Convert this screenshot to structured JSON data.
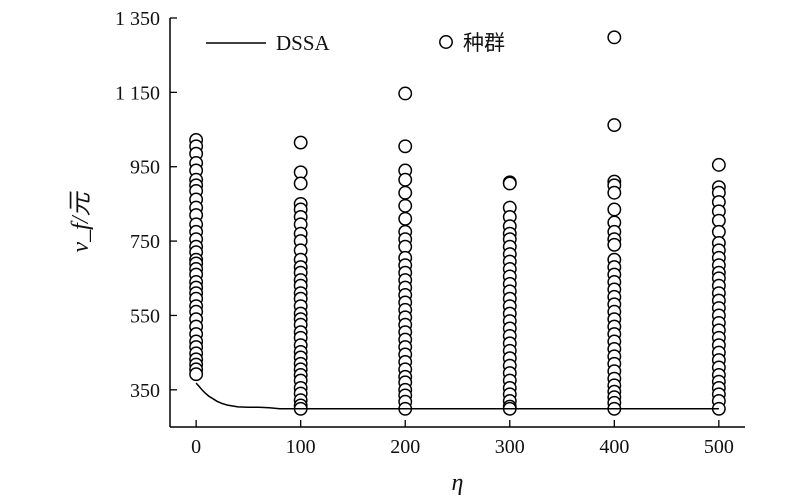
{
  "chart_data": {
    "type": "scatter",
    "title": "",
    "xlabel": "η",
    "ylabel": "v_f/元",
    "xlim": [
      -25,
      525
    ],
    "ylim": [
      250,
      1350
    ],
    "x_ticks": [
      0,
      100,
      200,
      300,
      400,
      500
    ],
    "x_tick_labels": [
      "0",
      "100",
      "200",
      "300",
      "400",
      "500"
    ],
    "y_ticks": [
      350,
      550,
      750,
      950,
      1150,
      1350
    ],
    "y_tick_labels": [
      "350",
      "550",
      "750",
      "950",
      "1 150",
      "1 350"
    ],
    "grid": false,
    "legend": {
      "position": "top",
      "entries": [
        {
          "label": "DSSA",
          "marker": "line"
        },
        {
          "label": "种群",
          "marker": "circle"
        }
      ]
    },
    "series": [
      {
        "name": "DSSA",
        "kind": "line",
        "color": "#000000",
        "x": [
          0,
          2,
          5,
          8,
          12,
          16,
          20,
          25,
          30,
          40,
          50,
          60,
          70,
          80,
          100,
          150,
          200,
          300,
          400,
          500
        ],
        "y": [
          368,
          362,
          352,
          343,
          333,
          326,
          319,
          313,
          309,
          304,
          303,
          303,
          302,
          299,
          299,
          299,
          299,
          299,
          299,
          299
        ]
      },
      {
        "name": "种群",
        "kind": "scatter",
        "color": "#000000",
        "points": [
          [
            0,
            1022
          ],
          [
            0,
            1005
          ],
          [
            0,
            985
          ],
          [
            0,
            960
          ],
          [
            0,
            940
          ],
          [
            0,
            915
          ],
          [
            0,
            900
          ],
          [
            0,
            885
          ],
          [
            0,
            862
          ],
          [
            0,
            840
          ],
          [
            0,
            820
          ],
          [
            0,
            795
          ],
          [
            0,
            775
          ],
          [
            0,
            755
          ],
          [
            0,
            735
          ],
          [
            0,
            720
          ],
          [
            0,
            700
          ],
          [
            0,
            690
          ],
          [
            0,
            675
          ],
          [
            0,
            660
          ],
          [
            0,
            640
          ],
          [
            0,
            625
          ],
          [
            0,
            610
          ],
          [
            0,
            595
          ],
          [
            0,
            575
          ],
          [
            0,
            560
          ],
          [
            0,
            540
          ],
          [
            0,
            520
          ],
          [
            0,
            500
          ],
          [
            0,
            480
          ],
          [
            0,
            465
          ],
          [
            0,
            448
          ],
          [
            0,
            432
          ],
          [
            0,
            418
          ],
          [
            0,
            405
          ],
          [
            0,
            392
          ],
          [
            100,
            1015
          ],
          [
            100,
            935
          ],
          [
            100,
            905
          ],
          [
            100,
            850
          ],
          [
            100,
            835
          ],
          [
            100,
            815
          ],
          [
            100,
            795
          ],
          [
            100,
            770
          ],
          [
            100,
            750
          ],
          [
            100,
            725
          ],
          [
            100,
            700
          ],
          [
            100,
            680
          ],
          [
            100,
            665
          ],
          [
            100,
            645
          ],
          [
            100,
            630
          ],
          [
            100,
            610
          ],
          [
            100,
            595
          ],
          [
            100,
            575
          ],
          [
            100,
            555
          ],
          [
            100,
            540
          ],
          [
            100,
            525
          ],
          [
            100,
            505
          ],
          [
            100,
            490
          ],
          [
            100,
            470
          ],
          [
            100,
            452
          ],
          [
            100,
            437
          ],
          [
            100,
            420
          ],
          [
            100,
            405
          ],
          [
            100,
            390
          ],
          [
            100,
            375
          ],
          [
            100,
            355
          ],
          [
            100,
            340
          ],
          [
            100,
            322
          ],
          [
            100,
            308
          ],
          [
            100,
            299
          ],
          [
            200,
            1147
          ],
          [
            200,
            1005
          ],
          [
            200,
            940
          ],
          [
            200,
            915
          ],
          [
            200,
            880
          ],
          [
            200,
            845
          ],
          [
            200,
            810
          ],
          [
            200,
            775
          ],
          [
            200,
            755
          ],
          [
            200,
            735
          ],
          [
            200,
            705
          ],
          [
            200,
            685
          ],
          [
            200,
            665
          ],
          [
            200,
            645
          ],
          [
            200,
            625
          ],
          [
            200,
            605
          ],
          [
            200,
            585
          ],
          [
            200,
            565
          ],
          [
            200,
            545
          ],
          [
            200,
            525
          ],
          [
            200,
            505
          ],
          [
            200,
            485
          ],
          [
            200,
            465
          ],
          [
            200,
            445
          ],
          [
            200,
            425
          ],
          [
            200,
            405
          ],
          [
            200,
            385
          ],
          [
            200,
            370
          ],
          [
            200,
            350
          ],
          [
            200,
            335
          ],
          [
            200,
            318
          ],
          [
            200,
            299
          ],
          [
            300,
            908
          ],
          [
            300,
            905
          ],
          [
            300,
            840
          ],
          [
            300,
            815
          ],
          [
            300,
            790
          ],
          [
            300,
            770
          ],
          [
            300,
            755
          ],
          [
            300,
            735
          ],
          [
            300,
            715
          ],
          [
            300,
            695
          ],
          [
            300,
            675
          ],
          [
            300,
            655
          ],
          [
            300,
            635
          ],
          [
            300,
            615
          ],
          [
            300,
            595
          ],
          [
            300,
            575
          ],
          [
            300,
            555
          ],
          [
            300,
            535
          ],
          [
            300,
            515
          ],
          [
            300,
            495
          ],
          [
            300,
            475
          ],
          [
            300,
            455
          ],
          [
            300,
            435
          ],
          [
            300,
            415
          ],
          [
            300,
            395
          ],
          [
            300,
            375
          ],
          [
            300,
            355
          ],
          [
            300,
            338
          ],
          [
            300,
            320
          ],
          [
            300,
            305
          ],
          [
            300,
            299
          ],
          [
            400,
            1298
          ],
          [
            400,
            1062
          ],
          [
            400,
            910
          ],
          [
            400,
            900
          ],
          [
            400,
            880
          ],
          [
            400,
            835
          ],
          [
            400,
            800
          ],
          [
            400,
            775
          ],
          [
            400,
            755
          ],
          [
            400,
            740
          ],
          [
            400,
            700
          ],
          [
            400,
            680
          ],
          [
            400,
            660
          ],
          [
            400,
            640
          ],
          [
            400,
            620
          ],
          [
            400,
            600
          ],
          [
            400,
            580
          ],
          [
            400,
            560
          ],
          [
            400,
            540
          ],
          [
            400,
            520
          ],
          [
            400,
            500
          ],
          [
            400,
            480
          ],
          [
            400,
            460
          ],
          [
            400,
            440
          ],
          [
            400,
            420
          ],
          [
            400,
            400
          ],
          [
            400,
            380
          ],
          [
            400,
            362
          ],
          [
            400,
            345
          ],
          [
            400,
            330
          ],
          [
            400,
            315
          ],
          [
            400,
            299
          ],
          [
            500,
            955
          ],
          [
            500,
            895
          ],
          [
            500,
            880
          ],
          [
            500,
            855
          ],
          [
            500,
            830
          ],
          [
            500,
            805
          ],
          [
            500,
            775
          ],
          [
            500,
            745
          ],
          [
            500,
            725
          ],
          [
            500,
            705
          ],
          [
            500,
            685
          ],
          [
            500,
            665
          ],
          [
            500,
            650
          ],
          [
            500,
            630
          ],
          [
            500,
            610
          ],
          [
            500,
            590
          ],
          [
            500,
            570
          ],
          [
            500,
            550
          ],
          [
            500,
            530
          ],
          [
            500,
            510
          ],
          [
            500,
            490
          ],
          [
            500,
            470
          ],
          [
            500,
            450
          ],
          [
            500,
            430
          ],
          [
            500,
            410
          ],
          [
            500,
            390
          ],
          [
            500,
            372
          ],
          [
            500,
            355
          ],
          [
            500,
            338
          ],
          [
            500,
            320
          ],
          [
            500,
            299
          ]
        ]
      }
    ]
  }
}
